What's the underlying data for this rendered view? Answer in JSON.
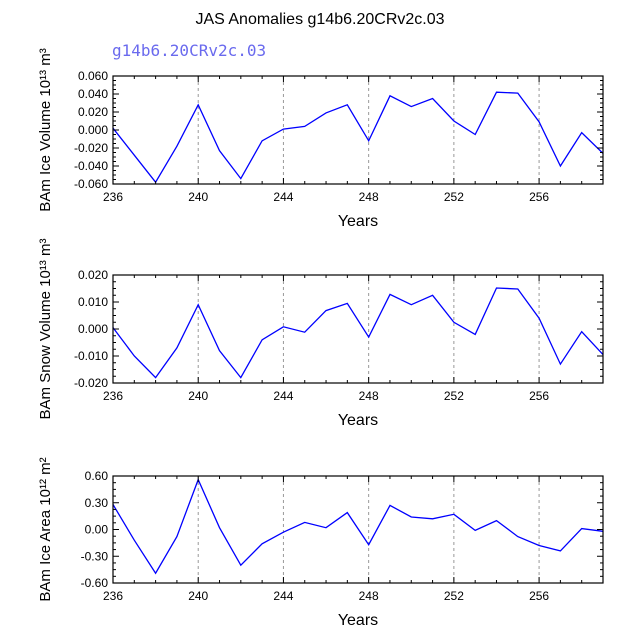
{
  "title": "JAS Anomalies g14b6.20CRv2c.03",
  "subtitle": "g14b6.20CRv2c.03",
  "colors": {
    "line": "#0000ff",
    "subtitle": "#6a6aee",
    "axis": "#000000",
    "grid": "#999999"
  },
  "chart_data": [
    {
      "type": "line",
      "xlabel": "Years",
      "ylabel": "BAm Ice Volume 10¹³ m³",
      "xlim": [
        236,
        259
      ],
      "ylim": [
        -0.06,
        0.06
      ],
      "xticks": [
        236,
        240,
        244,
        248,
        252,
        256
      ],
      "yticks": [
        -0.06,
        -0.04,
        -0.02,
        0.0,
        0.02,
        0.04,
        0.06
      ],
      "ytick_labels": [
        "-0.060",
        "-0.040",
        "-0.020",
        "0.000",
        "0.020",
        "0.040",
        "0.060"
      ],
      "grid": "vertical dashed at major x ticks",
      "x": [
        236,
        237,
        238,
        239,
        240,
        241,
        242,
        243,
        244,
        245,
        246,
        247,
        248,
        249,
        250,
        251,
        252,
        253,
        254,
        255,
        256,
        257,
        258,
        259
      ],
      "series": [
        {
          "values": [
            0.002,
            -0.028,
            -0.058,
            -0.018,
            0.028,
            -0.023,
            -0.054,
            -0.012,
            0.001,
            0.004,
            0.019,
            0.028,
            -0.012,
            0.038,
            0.026,
            0.035,
            0.01,
            -0.005,
            0.042,
            0.041,
            0.009,
            -0.04,
            -0.003,
            -0.026
          ]
        }
      ]
    },
    {
      "type": "line",
      "xlabel": "Years",
      "ylabel": "BAm Snow Volume 10¹³ m³",
      "xlim": [
        236,
        259
      ],
      "ylim": [
        -0.02,
        0.02
      ],
      "xticks": [
        236,
        240,
        244,
        248,
        252,
        256
      ],
      "yticks": [
        -0.02,
        -0.01,
        0.0,
        0.01,
        0.02
      ],
      "ytick_labels": [
        "-0.020",
        "-0.010",
        "0.000",
        "0.010",
        "0.020"
      ],
      "grid": "vertical dashed at major x ticks",
      "x": [
        236,
        237,
        238,
        239,
        240,
        241,
        242,
        243,
        244,
        245,
        246,
        247,
        248,
        249,
        250,
        251,
        252,
        253,
        254,
        255,
        256,
        257,
        258,
        259
      ],
      "series": [
        {
          "values": [
            0.0005,
            -0.01,
            -0.018,
            -0.007,
            0.009,
            -0.008,
            -0.018,
            -0.004,
            0.0008,
            -0.0012,
            0.0068,
            0.0095,
            -0.003,
            0.0128,
            0.009,
            0.0125,
            0.0025,
            -0.002,
            0.0152,
            0.0148,
            0.004,
            -0.013,
            -0.001,
            -0.0095
          ]
        }
      ]
    },
    {
      "type": "line",
      "xlabel": "Years",
      "ylabel": "BAm Ice Area 10¹² m²",
      "xlim": [
        236,
        259
      ],
      "ylim": [
        -0.6,
        0.6
      ],
      "xticks": [
        236,
        240,
        244,
        248,
        252,
        256
      ],
      "yticks": [
        -0.6,
        -0.3,
        0.0,
        0.3,
        0.6
      ],
      "ytick_labels": [
        "-0.60",
        "-0.30",
        "0.00",
        "0.30",
        "0.60"
      ],
      "grid": "vertical dashed at major x ticks",
      "x": [
        236,
        237,
        238,
        239,
        240,
        241,
        242,
        243,
        244,
        245,
        246,
        247,
        248,
        249,
        250,
        251,
        252,
        253,
        254,
        255,
        256,
        257,
        258,
        259
      ],
      "series": [
        {
          "values": [
            0.28,
            -0.12,
            -0.49,
            -0.08,
            0.56,
            0.02,
            -0.4,
            -0.16,
            -0.03,
            0.08,
            0.02,
            0.19,
            -0.17,
            0.27,
            0.14,
            0.12,
            0.17,
            -0.01,
            0.1,
            -0.08,
            -0.18,
            -0.24,
            0.01,
            -0.02
          ]
        }
      ]
    }
  ]
}
